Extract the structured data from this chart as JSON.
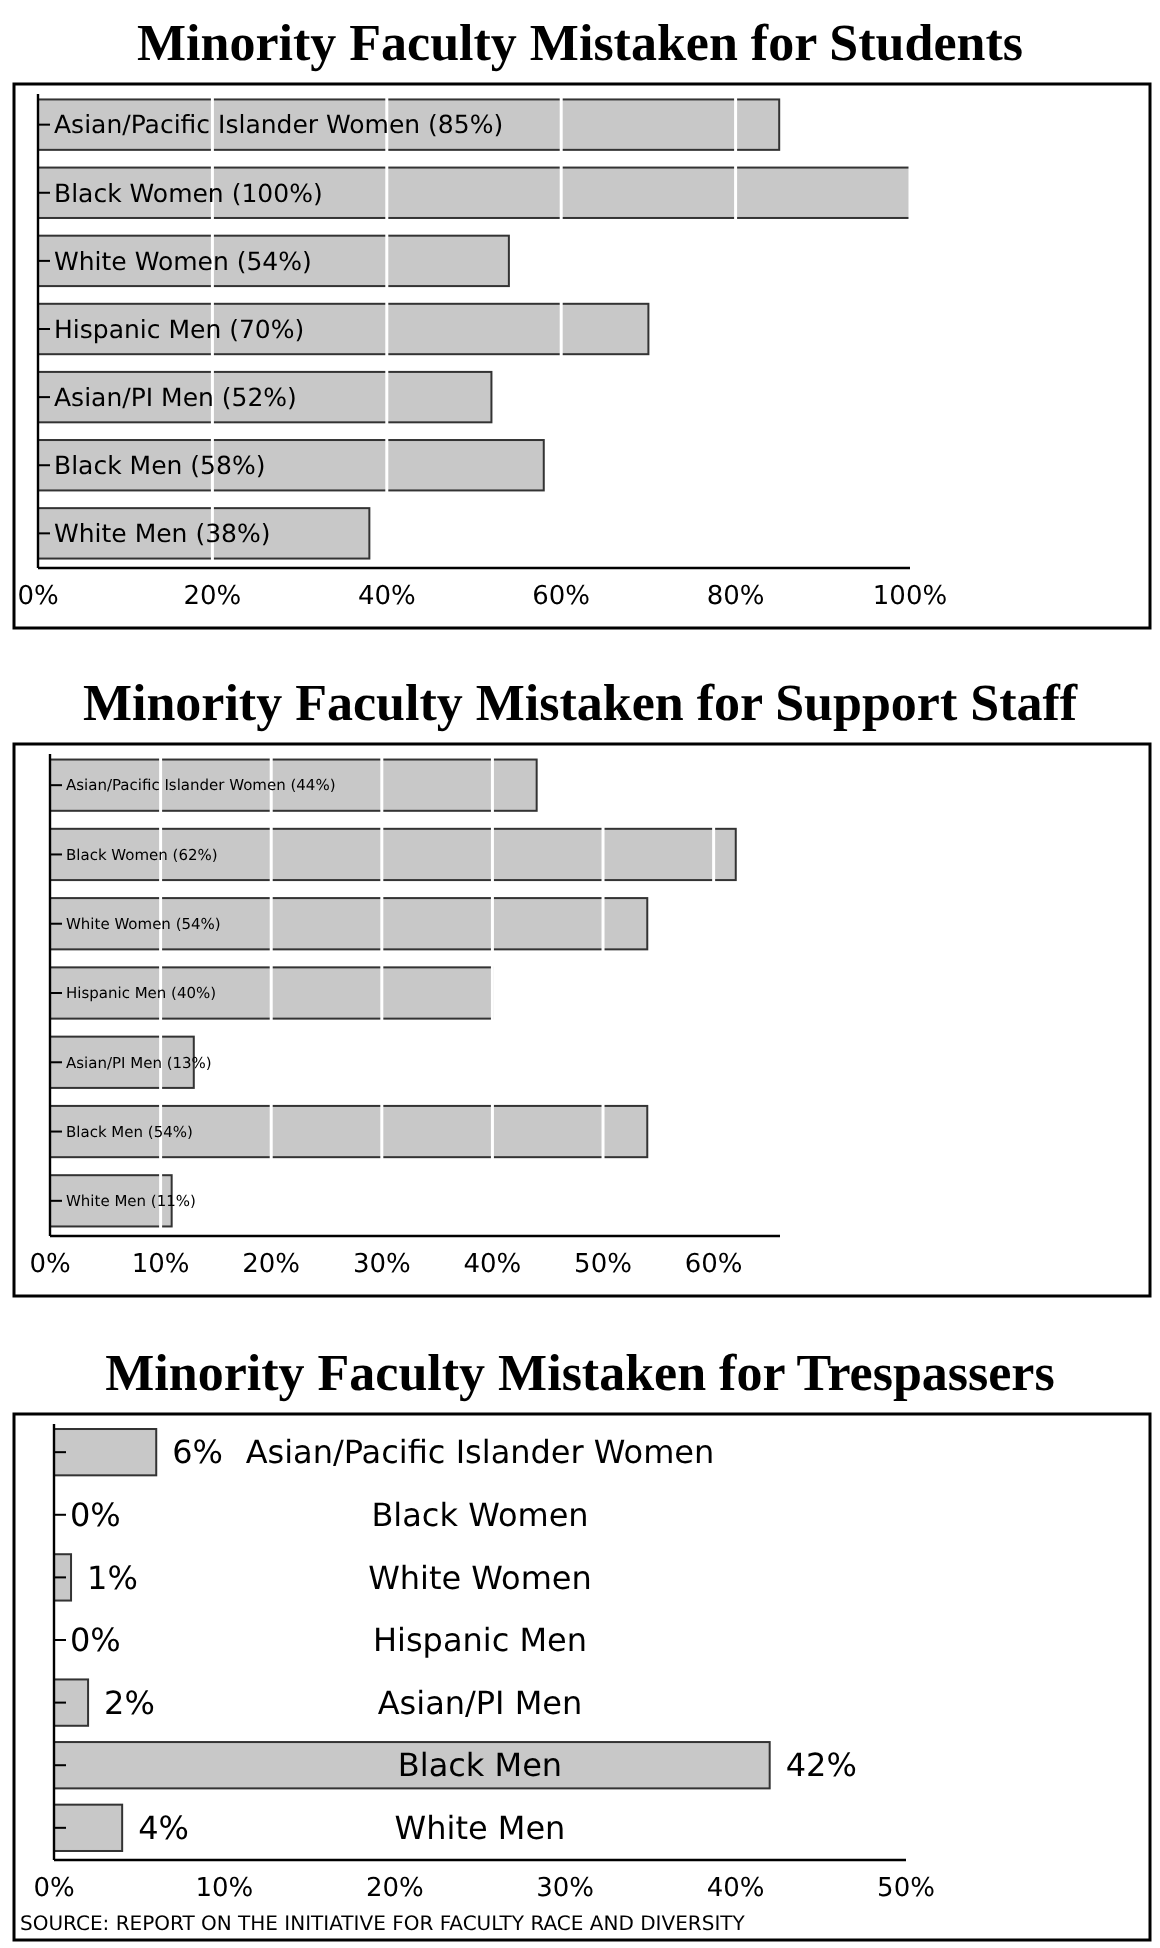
{
  "chart_data": [
    {
      "type": "bar",
      "orientation": "horizontal",
      "title": "Minority Faculty Mistaken for Students",
      "categories": [
        "Asian/Pacific Islander Women (85%)",
        "Black Women (100%)",
        "White Women (54%)",
        "Hispanic Men (70%)",
        "Asian/PI Men (52%)",
        "Black Men (58%)",
        "White Men (38%)"
      ],
      "values": [
        85,
        100,
        54,
        70,
        52,
        58,
        38
      ],
      "color": "#c8c8c8",
      "xlim": [
        0,
        100
      ],
      "xticks": [
        {
          "value": 0,
          "label": "0%"
        },
        {
          "value": 20,
          "label": "20%"
        },
        {
          "value": 40,
          "label": "40%"
        },
        {
          "value": 60,
          "label": "60%"
        },
        {
          "value": 80,
          "label": "80%"
        },
        {
          "value": 100,
          "label": "100%"
        }
      ],
      "grid": "x"
    },
    {
      "type": "bar",
      "orientation": "horizontal",
      "title": "Minority Faculty Mistaken for Support Staff",
      "categories": [
        "Asian/Pacific Islander Women (44%)",
        "Black Women (62%)",
        "White Women (54%)",
        "Hispanic Men (40%)",
        "Asian/PI Men (13%)",
        "Black Men (54%)",
        "White Men (11%)"
      ],
      "values": [
        44,
        62,
        54,
        40,
        13,
        54,
        11
      ],
      "color": "#c8c8c8",
      "xlim": [
        0,
        66
      ],
      "xticks": [
        {
          "value": 0,
          "label": "0%"
        },
        {
          "value": 10,
          "label": "10%"
        },
        {
          "value": 20,
          "label": "20%"
        },
        {
          "value": 30,
          "label": "30%"
        },
        {
          "value": 40,
          "label": "40%"
        },
        {
          "value": 50,
          "label": "50%"
        },
        {
          "value": 60,
          "label": "60%"
        }
      ],
      "grid": "x"
    },
    {
      "type": "bar",
      "orientation": "horizontal",
      "title": "Minority Faculty Mistaken for Trespassers",
      "categories": [
        "Asian/Pacific Islander Women",
        "Black Women",
        "White Women",
        "Hispanic Men",
        "Asian/PI Men",
        "Black Men",
        "White Men"
      ],
      "values": [
        6,
        0,
        1,
        0,
        2,
        42,
        4
      ],
      "value_labels": [
        "6%",
        "0%",
        "1%",
        "0%",
        "2%",
        "42%",
        "4%"
      ],
      "color": "#c8c8c8",
      "xlim": [
        0,
        50
      ],
      "xticks": [
        {
          "value": 0,
          "label": "0%"
        },
        {
          "value": 10,
          "label": "10%"
        },
        {
          "value": 20,
          "label": "20%"
        },
        {
          "value": 30,
          "label": "30%"
        },
        {
          "value": 40,
          "label": "40%"
        },
        {
          "value": 50,
          "label": "50%"
        }
      ],
      "annotations": [
        "SOURCE: REPORT ON THE INITIATIVE FOR FACULTY RACE AND DIVERSITY"
      ]
    }
  ]
}
